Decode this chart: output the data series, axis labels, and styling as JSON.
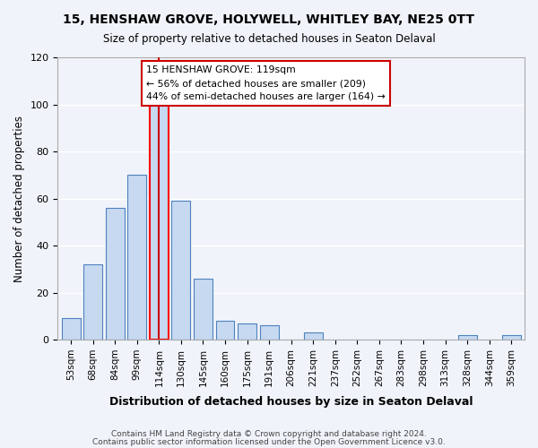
{
  "title": "15, HENSHAW GROVE, HOLYWELL, WHITLEY BAY, NE25 0TT",
  "subtitle": "Size of property relative to detached houses in Seaton Delaval",
  "xlabel": "Distribution of detached houses by size in Seaton Delaval",
  "ylabel": "Number of detached properties",
  "bar_labels": [
    "53sqm",
    "68sqm",
    "84sqm",
    "99sqm",
    "114sqm",
    "130sqm",
    "145sqm",
    "160sqm",
    "175sqm",
    "191sqm",
    "206sqm",
    "221sqm",
    "237sqm",
    "252sqm",
    "267sqm",
    "283sqm",
    "298sqm",
    "313sqm",
    "328sqm",
    "344sqm",
    "359sqm"
  ],
  "bar_values": [
    9,
    32,
    56,
    70,
    101,
    59,
    26,
    8,
    7,
    6,
    0,
    3,
    0,
    0,
    0,
    0,
    0,
    0,
    2,
    0,
    2
  ],
  "bar_color": "#c6d9f1",
  "bar_edge_color": "#4f81bd",
  "highlight_bar_index": 4,
  "highlight_bar_color": "#c6d9f1",
  "highlight_bar_edge_color": "#ff0000",
  "vline_x": 4,
  "vline_color": "#cc0000",
  "ylim": [
    0,
    120
  ],
  "yticks": [
    0,
    20,
    40,
    60,
    80,
    100,
    120
  ],
  "annotation_title": "15 HENSHAW GROVE: 119sqm",
  "annotation_line1": "← 56% of detached houses are smaller (209)",
  "annotation_line2": "44% of semi-detached houses are larger (164) →",
  "annotation_box_color": "#ffffff",
  "annotation_box_edge": "#cc0000",
  "footer_line1": "Contains HM Land Registry data © Crown copyright and database right 2024.",
  "footer_line2": "Contains public sector information licensed under the Open Government Licence v3.0.",
  "bg_color": "#f0f4fa"
}
